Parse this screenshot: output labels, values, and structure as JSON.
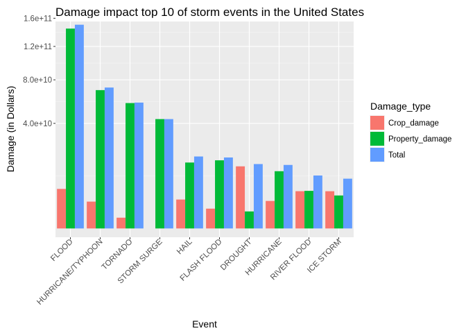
{
  "chart_data": {
    "type": "bar",
    "title": "Damage impact top 10 of storm events in the United States",
    "xlabel": "Event",
    "ylabel": "Damage (in Dollars)",
    "y_scale": "sqrt",
    "ylim": [
      0,
      170000000000
    ],
    "yticks": [
      40000000000,
      80000000000,
      120000000000,
      160000000000
    ],
    "ytick_labels": [
      "4.0e+10",
      "8.0e+10",
      "1.2e+11",
      "1.6e+11"
    ],
    "grid": true,
    "legend_position": "right",
    "legend_title": "Damage_type",
    "categories": [
      "FLOOD",
      "HURRICANE/TYPHOON",
      "TORNADO",
      "STORM SURGE",
      "HAIL",
      "FLASH FLOOD",
      "DROUGHT",
      "HURRICANE",
      "RIVER FLOOD",
      "ICE STORM"
    ],
    "series": [
      {
        "name": "Crop_damage",
        "color": "#F8766D",
        "values": [
          5660000000,
          2610000000,
          420000000,
          0,
          3030000000,
          1420000000,
          13970000000,
          2740000000,
          5030000000,
          5020000000
        ]
      },
      {
        "name": "Property_damage",
        "color": "#00BA38",
        "values": [
          144660000000,
          69310000000,
          56940000000,
          43320000000,
          15740000000,
          16820000000,
          1050000000,
          11870000000,
          5120000000,
          3940000000
        ]
      },
      {
        "name": "Total",
        "color": "#619CFF",
        "values": [
          150320000000,
          71910000000,
          57360000000,
          43320000000,
          18760000000,
          18240000000,
          15020000000,
          14610000000,
          10150000000,
          8970000000
        ]
      }
    ]
  }
}
